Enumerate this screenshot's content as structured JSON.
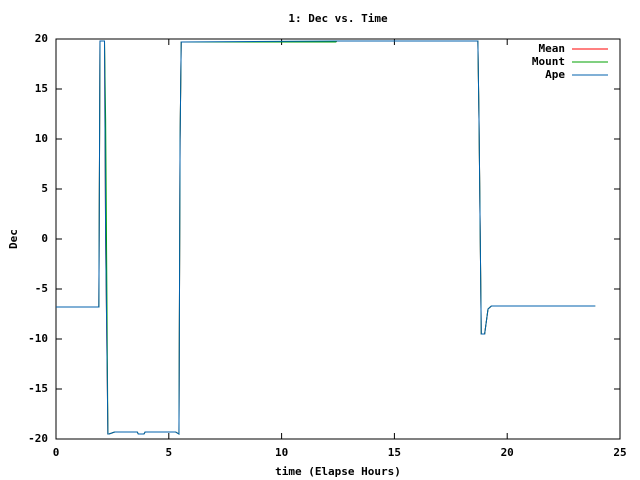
{
  "chart_data": {
    "type": "line",
    "title": "1: Dec vs. Time",
    "x_label": "time (Elapse Hours)",
    "y_label": "Dec",
    "x": [
      0,
      1.9,
      1.95,
      2.15,
      2.2,
      2.3,
      2.35,
      2.6,
      3.6,
      3.65,
      3.9,
      3.95,
      5.3,
      5.45,
      5.5,
      5.55,
      12.4,
      12.45,
      18.7,
      18.75,
      18.85,
      19.0,
      19.15,
      19.3,
      23.9
    ],
    "series": [
      {
        "name": "Mean",
        "color": "#ff0000",
        "values": [
          -6.8,
          -6.8,
          19.8,
          19.8,
          0,
          -19.5,
          -19.5,
          -19.3,
          -19.3,
          -19.5,
          -19.5,
          -19.3,
          -19.3,
          -19.5,
          10,
          19.7,
          19.7,
          19.8,
          19.8,
          12,
          -9.5,
          -9.5,
          -7,
          -6.7,
          -6.7
        ]
      },
      {
        "name": "Mount",
        "color": "#00a000",
        "values": [
          -6.8,
          -6.8,
          19.8,
          19.8,
          12,
          -19.5,
          -19.5,
          -19.3,
          -19.3,
          -19.5,
          -19.5,
          -19.3,
          -19.3,
          -19.5,
          10,
          19.7,
          19.7,
          19.8,
          19.8,
          12,
          -9.5,
          -9.5,
          -7,
          -6.7,
          -6.7
        ]
      },
      {
        "name": "Ape",
        "color": "#0060ad",
        "values": [
          -6.8,
          -6.8,
          19.8,
          19.8,
          0,
          -19.5,
          -19.5,
          -19.3,
          -19.3,
          -19.5,
          -19.5,
          -19.3,
          -19.3,
          -19.5,
          10,
          19.7,
          19.8,
          19.8,
          19.8,
          12,
          -9.5,
          -9.5,
          -7,
          -6.7,
          -6.7
        ]
      }
    ],
    "xlim": [
      0,
      25
    ],
    "xticks": [
      0,
      5,
      10,
      15,
      20,
      25
    ],
    "ylim": [
      -20,
      20
    ],
    "yticks": [
      -20,
      -15,
      -10,
      -5,
      0,
      5,
      10,
      15,
      20
    ],
    "grid": false,
    "legend": "top-right"
  }
}
